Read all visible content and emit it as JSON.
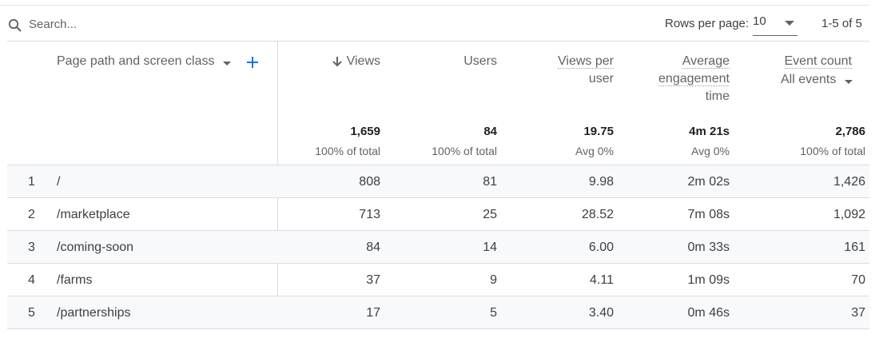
{
  "toolbar": {
    "search_placeholder": "Search...",
    "rows_per_page_label": "Rows per page:",
    "rows_per_page_value": "10",
    "pagination": "1-5 of 5"
  },
  "header": {
    "dimension": "Page path and screen class",
    "views": "Views",
    "users": "Users",
    "views_per_user_1": "Views per",
    "views_per_user_2": "user",
    "engagement_1": "Average",
    "engagement_2": "engagement",
    "engagement_3": "time",
    "event_count": "Event count",
    "event_filter": "All events"
  },
  "totals": {
    "views": {
      "value": "1,659",
      "sub": "100% of total"
    },
    "users": {
      "value": "84",
      "sub": "100% of total"
    },
    "views_per_user": {
      "value": "19.75",
      "sub": "Avg 0%"
    },
    "engagement": {
      "value": "4m 21s",
      "sub": "Avg 0%"
    },
    "event_count": {
      "value": "2,786",
      "sub": "100% of total"
    }
  },
  "rows": [
    {
      "index": "1",
      "path": "/",
      "views": "808",
      "users": "81",
      "views_per_user": "9.98",
      "engagement": "2m 02s",
      "event_count": "1,426"
    },
    {
      "index": "2",
      "path": "/marketplace",
      "views": "713",
      "users": "25",
      "views_per_user": "28.52",
      "engagement": "7m 08s",
      "event_count": "1,092"
    },
    {
      "index": "3",
      "path": "/coming-soon",
      "views": "84",
      "users": "14",
      "views_per_user": "6.00",
      "engagement": "0m 33s",
      "event_count": "161"
    },
    {
      "index": "4",
      "path": "/farms",
      "views": "37",
      "users": "9",
      "views_per_user": "4.11",
      "engagement": "1m 09s",
      "event_count": "70"
    },
    {
      "index": "5",
      "path": "/partnerships",
      "views": "17",
      "users": "5",
      "views_per_user": "3.40",
      "engagement": "0m 46s",
      "event_count": "37"
    }
  ],
  "colors": {
    "accent": "#1a73e8",
    "text": "#3c4043",
    "muted": "#5f6368",
    "divider": "#dadce0",
    "stripe": "#f8f9fa"
  },
  "icons": {
    "search": "search-icon",
    "sort": "arrow-down-icon",
    "add": "plus-icon",
    "dropdown": "chevron-down-icon"
  }
}
